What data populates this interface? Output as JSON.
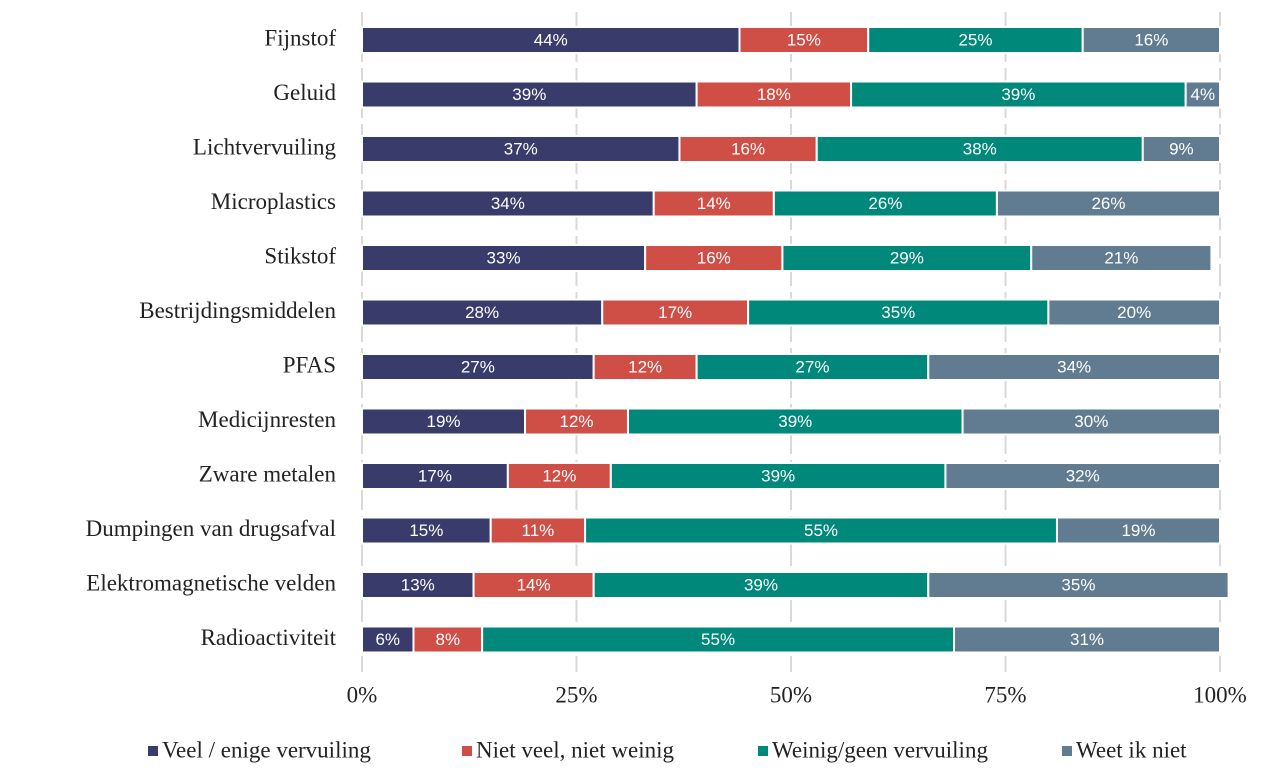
{
  "chart_data": {
    "type": "stacked_barh",
    "categories": [
      "Fijnstof",
      "Geluid",
      "Lichtvervuiling",
      "Microplastics",
      "Stikstof",
      "Bestrijdingsmiddelen",
      "PFAS",
      "Medicijnresten",
      "Zware metalen",
      "Dumpingen van drugsafval",
      "Elektromagnetische velden",
      "Radioactiviteit"
    ],
    "series": [
      {
        "name": "Veel / enige vervuiling",
        "color": "#393c6b",
        "values": [
          44,
          39,
          37,
          34,
          33,
          28,
          27,
          19,
          17,
          15,
          13,
          6
        ],
        "value_labels": [
          "44%",
          "39%",
          "37%",
          "34%",
          "33%",
          "28%",
          "27%",
          "19%",
          "17%",
          "15%",
          "13%",
          "6%"
        ]
      },
      {
        "name": "Niet veel, niet weinig",
        "color": "#cf4f47",
        "values": [
          15,
          18,
          16,
          14,
          16,
          17,
          12,
          12,
          12,
          11,
          14,
          8
        ],
        "value_labels": [
          "15%",
          "18%",
          "16%",
          "14%",
          "16%",
          "17%",
          "12%",
          "12%",
          "12%",
          "11%",
          "14%",
          "8%"
        ]
      },
      {
        "name": "Weinig/geen vervuiling",
        "color": "#00897b",
        "values": [
          25,
          39,
          38,
          26,
          29,
          35,
          27,
          39,
          39,
          55,
          39,
          55
        ],
        "value_labels": [
          "25%",
          "39%",
          "38%",
          "26%",
          "29%",
          "35%",
          "27%",
          "39%",
          "39%",
          "55%",
          "39%",
          "55%"
        ]
      },
      {
        "name": "Weet ik niet",
        "color": "#617c90",
        "values": [
          16,
          4,
          9,
          26,
          21,
          20,
          34,
          30,
          32,
          19,
          35,
          31
        ],
        "value_labels": [
          "16%",
          "4%",
          "9%",
          "26%",
          "21%",
          "20%",
          "34%",
          "30%",
          "32%",
          "19%",
          "35%",
          "31%"
        ]
      }
    ],
    "xlim": [
      0,
      100
    ],
    "xticks": [
      {
        "value": 0,
        "label": "0%"
      },
      {
        "value": 25,
        "label": "25%"
      },
      {
        "value": 50,
        "label": "50%"
      },
      {
        "value": 75,
        "label": "75%"
      },
      {
        "value": 100,
        "label": "100%"
      }
    ],
    "grid": true,
    "legend": "bottom"
  }
}
